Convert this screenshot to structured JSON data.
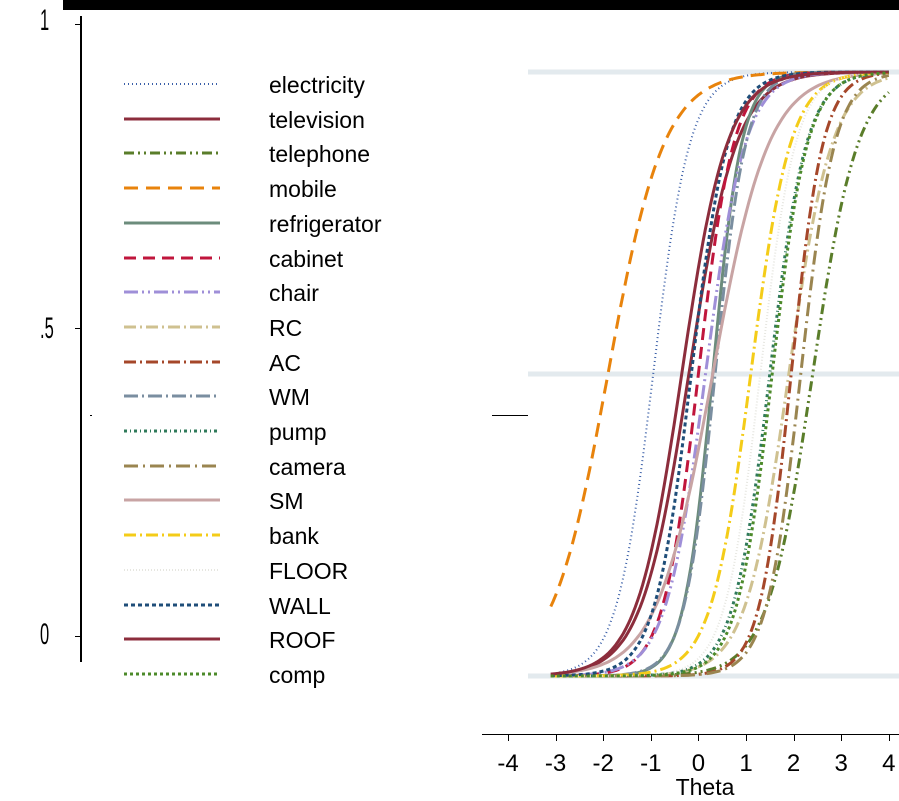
{
  "chart_data": {
    "type": "line",
    "xlabel": "Theta",
    "xlim": [
      -4,
      4
    ],
    "ylim": [
      0,
      1
    ],
    "x_ticks": [
      "-4",
      "-3",
      "-2",
      "-1",
      "0",
      "1",
      "2",
      "3",
      "4"
    ],
    "y_ticks": [
      "0",
      ".5",
      "1"
    ],
    "grid": "horizontal",
    "legend_placement": "left",
    "series": [
      {
        "name": "electricity",
        "color": "#3a5fa8",
        "dash": "1,3",
        "width": 2,
        "discrimination": 2.6,
        "difficulty": -0.95,
        "x_start": -3.0,
        "x_end": 4.0
      },
      {
        "name": "television",
        "color": "#8c2d3c",
        "dash": "",
        "width": 3,
        "discrimination": 2.0,
        "difficulty": -0.2,
        "x_start": -3.1,
        "x_end": 4.0
      },
      {
        "name": "telephone",
        "color": "#5a7d2a",
        "dash": "10,4,2,4,2,4",
        "width": 3,
        "discrimination": 2.1,
        "difficulty": 2.4,
        "x_start": -3.1,
        "x_end": 4.0
      },
      {
        "name": "mobile",
        "color": "#e8830c",
        "dash": "14,8",
        "width": 3,
        "discrimination": 1.7,
        "difficulty": -1.9,
        "x_start": -3.1,
        "x_end": 4.0
      },
      {
        "name": "refrigerator",
        "color": "#6c8c7c",
        "dash": "",
        "width": 3,
        "discrimination": 3.3,
        "difficulty": 0.3,
        "x_start": -3.1,
        "x_end": 4.0
      },
      {
        "name": "cabinet",
        "color": "#c0163c",
        "dash": "12,7",
        "width": 3,
        "discrimination": 2.7,
        "difficulty": 0.0,
        "x_start": -3.1,
        "x_end": 4.0
      },
      {
        "name": "chair",
        "color": "#9f8fd8",
        "dash": "14,4,2,4,2,4",
        "width": 3,
        "discrimination": 2.4,
        "difficulty": 0.15,
        "x_start": -3.1,
        "x_end": 4.0
      },
      {
        "name": "RC",
        "color": "#cfc190",
        "dash": "12,4,2,4",
        "width": 3,
        "discrimination": 2.2,
        "difficulty": 1.9,
        "x_start": -3.1,
        "x_end": 4.0
      },
      {
        "name": "AC",
        "color": "#a5472a",
        "dash": "12,4,2,4",
        "width": 3,
        "discrimination": 3.0,
        "difficulty": 1.95,
        "x_start": -3.1,
        "x_end": 4.0
      },
      {
        "name": "WM",
        "color": "#7a8ea0",
        "dash": "14,4,2,4",
        "width": 3,
        "discrimination": 3.1,
        "difficulty": 0.35,
        "x_start": -3.1,
        "x_end": 4.0
      },
      {
        "name": "pump",
        "color": "#2f7a5a",
        "dash": "3,3,1,3",
        "width": 3,
        "discrimination": 2.6,
        "difficulty": 1.5,
        "x_start": -3.1,
        "x_end": 4.0
      },
      {
        "name": "camera",
        "color": "#9a8550",
        "dash": "14,5,2,5",
        "width": 3,
        "discrimination": 2.8,
        "difficulty": 2.15,
        "x_start": -3.1,
        "x_end": 4.0
      },
      {
        "name": "SM",
        "color": "#c8a4a4",
        "dash": "",
        "width": 3,
        "discrimination": 1.7,
        "difficulty": 0.3,
        "x_start": -3.1,
        "x_end": 4.0
      },
      {
        "name": "bank",
        "color": "#f4cc18",
        "dash": "12,4,2,4",
        "width": 3,
        "discrimination": 2.4,
        "difficulty": 1.1,
        "x_start": -3.1,
        "x_end": 4.0
      },
      {
        "name": "FLOOR",
        "color": "#e6e6e0",
        "dash": "1,2",
        "width": 2,
        "discrimination": 2.7,
        "difficulty": 1.3,
        "x_start": -3.1,
        "x_end": 4.0
      },
      {
        "name": "WALL",
        "color": "#1f4e79",
        "dash": "4,3",
        "width": 3,
        "discrimination": 2.6,
        "difficulty": -0.15,
        "x_start": -3.1,
        "x_end": 4.0
      },
      {
        "name": "ROOF",
        "color": "#8c2d3c",
        "dash": "",
        "width": 3,
        "discrimination": 2.1,
        "difficulty": -0.35,
        "x_start": -3.1,
        "x_end": 4.0
      },
      {
        "name": "comp",
        "color": "#4c8a2a",
        "dash": "3,3",
        "width": 3,
        "discrimination": 2.7,
        "difficulty": 1.55,
        "x_start": -3.1,
        "x_end": 4.0
      }
    ]
  }
}
